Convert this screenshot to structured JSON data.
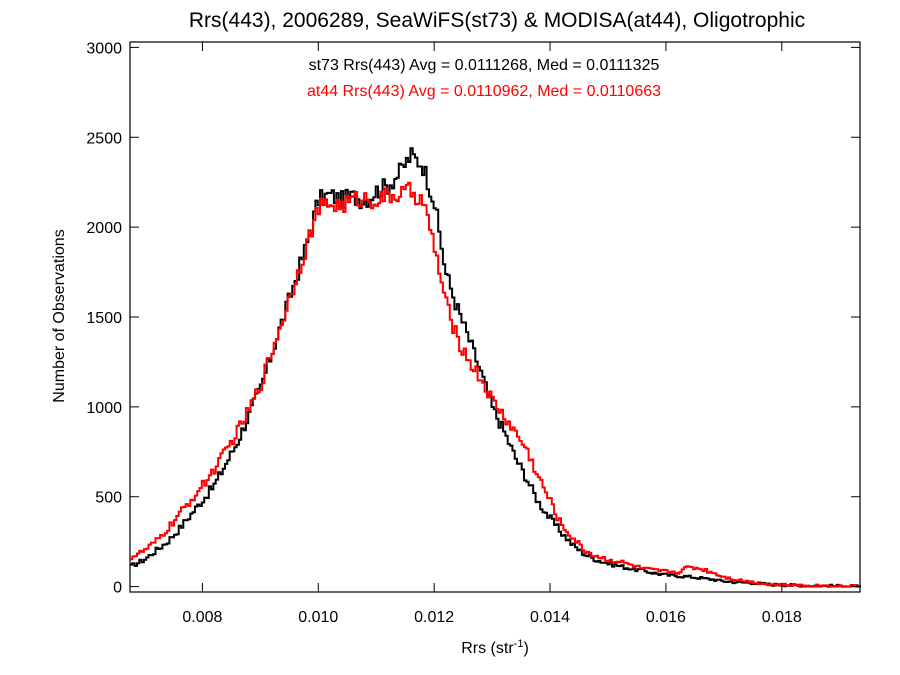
{
  "chart_data": {
    "type": "line",
    "title": "Rrs(443), 2006289, SeaWiFS(st73) & MODISA(at44), Oligotrophic",
    "xlabel": "Rrs (str",
    "xlabel_sup": "-1",
    "xlabel_end": ")",
    "ylabel": "Number of Observations",
    "xlim": [
      0.00675,
      0.01935
    ],
    "ylim": [
      -30,
      3030
    ],
    "xticks": [
      0.008,
      0.01,
      0.012,
      0.014,
      0.016,
      0.018
    ],
    "xtick_labels": [
      "0.008",
      "0.010",
      "0.012",
      "0.014",
      "0.016",
      "0.018"
    ],
    "yticks": [
      0,
      500,
      1000,
      1500,
      2000,
      2500,
      3000
    ],
    "ytick_labels": [
      "0",
      "500",
      "1000",
      "1500",
      "2000",
      "2500",
      "3000"
    ],
    "grid": false,
    "annotations": [
      {
        "text": "st73 Rrs(443) Avg = 0.0111268, Med = 0.0111325",
        "color": "#000000"
      },
      {
        "text": "at44 Rrs(443) Avg = 0.0110962, Med = 0.0110663",
        "color": "#ff0000"
      }
    ],
    "series": [
      {
        "color": "#000000",
        "x": [
          0.00675,
          0.007,
          0.0072,
          0.0074,
          0.0076,
          0.0078,
          0.008,
          0.0082,
          0.0084,
          0.0086,
          0.0088,
          0.009,
          0.0092,
          0.0094,
          0.0096,
          0.0098,
          0.01,
          0.0102,
          0.0104,
          0.0106,
          0.0108,
          0.011,
          0.0112,
          0.0114,
          0.0116,
          0.0118,
          0.012,
          0.0122,
          0.0124,
          0.0126,
          0.0128,
          0.013,
          0.0132,
          0.0134,
          0.0136,
          0.0138,
          0.014,
          0.0142,
          0.0144,
          0.0146,
          0.0148,
          0.015,
          0.0152,
          0.0154,
          0.0156,
          0.0158,
          0.016,
          0.0162,
          0.0164,
          0.0166,
          0.0168,
          0.017,
          0.0172,
          0.0174,
          0.0176,
          0.0178,
          0.018,
          0.0182,
          0.0184,
          0.0186,
          0.0188,
          0.019,
          0.0193
        ],
        "y": [
          110,
          150,
          200,
          250,
          320,
          400,
          480,
          560,
          680,
          800,
          950,
          1100,
          1300,
          1500,
          1700,
          1900,
          2150,
          2180,
          2150,
          2170,
          2150,
          2200,
          2230,
          2300,
          2400,
          2350,
          2150,
          1750,
          1550,
          1380,
          1200,
          1000,
          870,
          720,
          600,
          470,
          380,
          300,
          230,
          180,
          150,
          130,
          115,
          100,
          90,
          75,
          65,
          60,
          55,
          48,
          40,
          30,
          25,
          22,
          18,
          12,
          10,
          8,
          6,
          5,
          4,
          3,
          2
        ]
      },
      {
        "color": "#ff0000",
        "x": [
          0.00675,
          0.007,
          0.0072,
          0.0074,
          0.0076,
          0.0078,
          0.008,
          0.0082,
          0.0084,
          0.0086,
          0.0088,
          0.009,
          0.0092,
          0.0094,
          0.0096,
          0.0098,
          0.01,
          0.0102,
          0.0104,
          0.0106,
          0.0108,
          0.011,
          0.0112,
          0.0114,
          0.0116,
          0.0118,
          0.012,
          0.0122,
          0.0124,
          0.0126,
          0.0128,
          0.013,
          0.0132,
          0.0134,
          0.0136,
          0.0138,
          0.014,
          0.0142,
          0.0144,
          0.0146,
          0.0148,
          0.015,
          0.0152,
          0.0154,
          0.0156,
          0.0158,
          0.016,
          0.0162,
          0.0164,
          0.0166,
          0.0168,
          0.017,
          0.0172,
          0.0174,
          0.0176,
          0.0178,
          0.018,
          0.0182,
          0.0184,
          0.0186,
          0.0188,
          0.019,
          0.0193
        ],
        "y": [
          160,
          200,
          250,
          320,
          400,
          480,
          560,
          650,
          750,
          860,
          980,
          1120,
          1310,
          1500,
          1700,
          1900,
          2100,
          2130,
          2120,
          2150,
          2160,
          2150,
          2170,
          2180,
          2200,
          2150,
          1900,
          1580,
          1380,
          1260,
          1160,
          1040,
          950,
          860,
          760,
          610,
          480,
          340,
          270,
          200,
          170,
          150,
          140,
          120,
          100,
          90,
          85,
          80,
          110,
          100,
          80,
          55,
          40,
          30,
          20,
          12,
          10,
          8,
          6,
          5,
          4,
          3,
          2
        ]
      }
    ]
  }
}
